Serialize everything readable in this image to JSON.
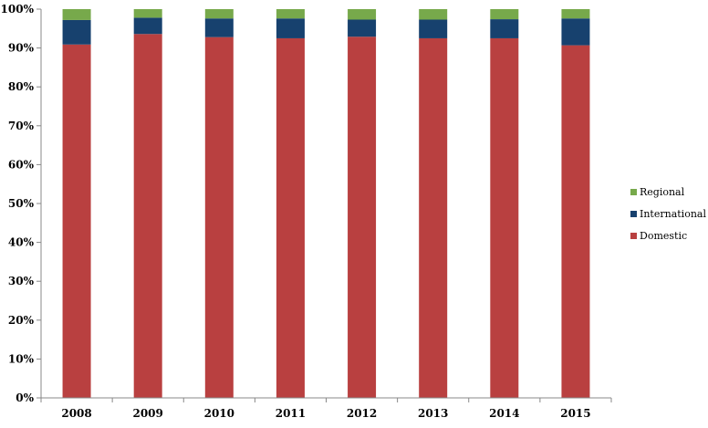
{
  "chart_data": {
    "type": "bar",
    "stacked": true,
    "percent": true,
    "title": "",
    "xlabel": "",
    "ylabel": "",
    "ylim": [
      0,
      100
    ],
    "yticks": [
      "0%",
      "10%",
      "20%",
      "30%",
      "40%",
      "50%",
      "60%",
      "70%",
      "80%",
      "90%",
      "100%"
    ],
    "categories": [
      "2008",
      "2009",
      "2010",
      "2011",
      "2012",
      "2013",
      "2014",
      "2015"
    ],
    "series": [
      {
        "name": "Domestic",
        "color": "#b94040",
        "values": [
          90.9,
          93.6,
          92.8,
          92.5,
          92.9,
          92.5,
          92.5,
          90.7
        ]
      },
      {
        "name": "International",
        "color": "#17416e",
        "values": [
          6.3,
          4.2,
          4.8,
          5.1,
          4.4,
          4.8,
          4.9,
          6.9
        ]
      },
      {
        "name": "Regional",
        "color": "#77a94b",
        "values": [
          2.8,
          2.2,
          2.4,
          2.4,
          2.7,
          2.7,
          2.6,
          2.4
        ]
      }
    ],
    "legend": [
      "Regional",
      "International",
      "Domestic"
    ],
    "legend_position": "right",
    "grid": false
  }
}
